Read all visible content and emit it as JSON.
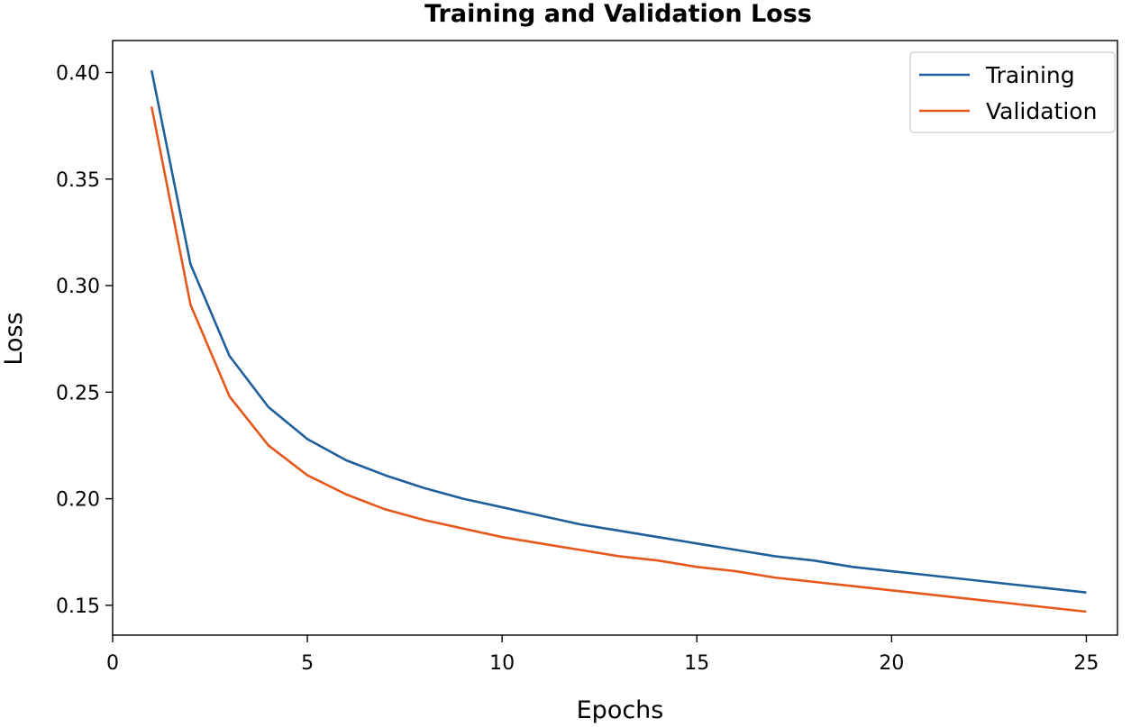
{
  "chart_data": {
    "type": "line",
    "title": "Training and Validation Loss",
    "xlabel": "Epochs",
    "ylabel": "Loss",
    "xlim": [
      0,
      25.8
    ],
    "ylim": [
      0.136,
      0.415
    ],
    "xticks": [
      0,
      5,
      10,
      15,
      20,
      25
    ],
    "xtick_labels": [
      "0",
      "5",
      "10",
      "15",
      "20",
      "25"
    ],
    "yticks": [
      0.15,
      0.2,
      0.25,
      0.3,
      0.35,
      0.4
    ],
    "ytick_labels": [
      "0.15",
      "0.20",
      "0.25",
      "0.30",
      "0.35",
      "0.40"
    ],
    "grid": false,
    "legend_position": "top-right",
    "x": [
      1,
      2,
      3,
      4,
      5,
      6,
      7,
      8,
      9,
      10,
      11,
      12,
      13,
      14,
      15,
      16,
      17,
      18,
      19,
      20,
      21,
      22,
      23,
      24,
      25
    ],
    "series": [
      {
        "name": "Training",
        "color": "#1f5f9b",
        "values": [
          0.401,
          0.31,
          0.267,
          0.243,
          0.228,
          0.218,
          0.211,
          0.205,
          0.2,
          0.196,
          0.192,
          0.188,
          0.185,
          0.182,
          0.179,
          0.176,
          0.173,
          0.171,
          0.168,
          0.166,
          0.164,
          0.162,
          0.16,
          0.158,
          0.156
        ]
      },
      {
        "name": "Validation",
        "color": "#e5581c",
        "values": [
          0.384,
          0.291,
          0.248,
          0.225,
          0.211,
          0.202,
          0.195,
          0.19,
          0.186,
          0.182,
          0.179,
          0.176,
          0.173,
          0.171,
          0.168,
          0.166,
          0.163,
          0.161,
          0.159,
          0.157,
          0.155,
          0.153,
          0.151,
          0.149,
          0.147
        ]
      }
    ]
  }
}
